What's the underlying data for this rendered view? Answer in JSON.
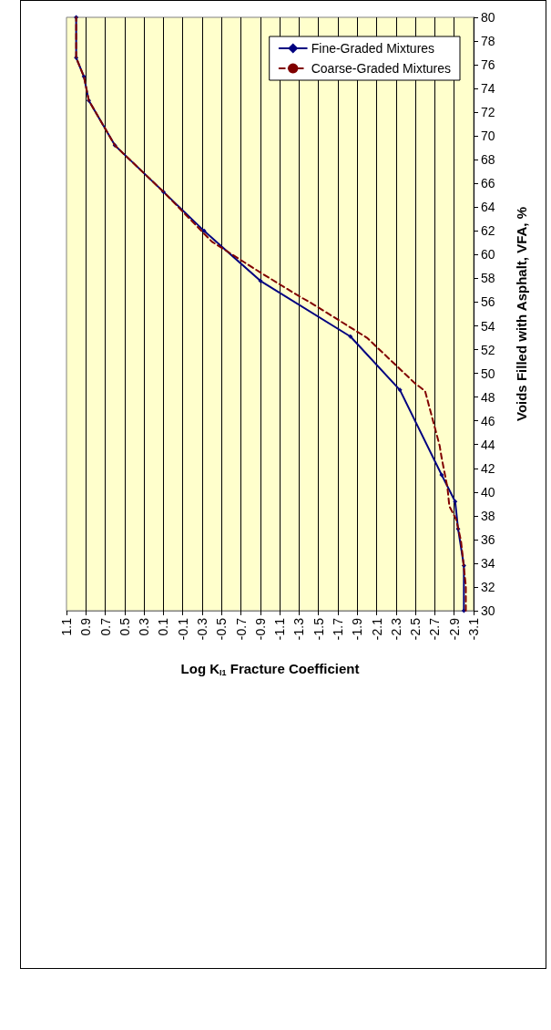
{
  "chart_data": {
    "type": "line",
    "xlabel": "Log K$_{I1}$ Fracture Coefficient",
    "ylabel": "Voids Filled with Asphalt, VFA, %",
    "xlim": [
      1.1,
      -3.1
    ],
    "xticks": [
      1.1,
      0.9,
      0.7,
      0.5,
      0.3,
      0.1,
      -0.1,
      -0.3,
      -0.5,
      -0.7,
      -0.9,
      -1.1,
      -1.3,
      -1.5,
      -1.7,
      -1.9,
      -2.1,
      -2.3,
      -2.5,
      -2.7,
      -2.9,
      -3.1
    ],
    "ylim": [
      30,
      80
    ],
    "yticks": [
      30,
      32,
      34,
      36,
      38,
      40,
      42,
      44,
      46,
      48,
      50,
      52,
      54,
      56,
      58,
      60,
      62,
      64,
      66,
      68,
      70,
      72,
      74,
      76,
      78,
      80
    ],
    "grid": "x",
    "legend": "top right",
    "series": [
      {
        "name": "Fine-Graded Mixtures",
        "color": "#000080",
        "marker": "diamond",
        "line_style": "solid",
        "x": [
          -3.0,
          -3.0,
          -2.94,
          -2.91,
          -2.77,
          -2.34,
          -1.83,
          -0.9,
          -0.32,
          0.1,
          0.6,
          0.87,
          0.92,
          1.0,
          1.0
        ],
        "values": [
          30,
          33.8,
          36.9,
          39.2,
          41.45,
          48.6,
          53.1,
          57.8,
          62,
          65.3,
          69.2,
          73,
          75,
          76.6,
          80
        ]
      },
      {
        "name": "Coarse-Graded Mixtures",
        "color": "#800000",
        "marker": "none",
        "line_style": "dashed",
        "x": [
          -3.02,
          -3.02,
          -2.97,
          -2.92,
          -2.85,
          -2.83,
          -2.77,
          -2.75,
          -2.6,
          -2.49,
          -2.0,
          -1.43,
          -1.3,
          -0.9,
          -0.4,
          0.1,
          0.6,
          0.87,
          0.92,
          1.0,
          1.0
        ],
        "values": [
          30,
          32.1,
          35.9,
          37.7,
          38.8,
          40.4,
          42.9,
          43.9,
          48.5,
          49.2,
          53,
          55.9,
          56.5,
          58.5,
          61.1,
          65.3,
          69.2,
          73,
          75,
          76.6,
          80
        ]
      }
    ]
  }
}
